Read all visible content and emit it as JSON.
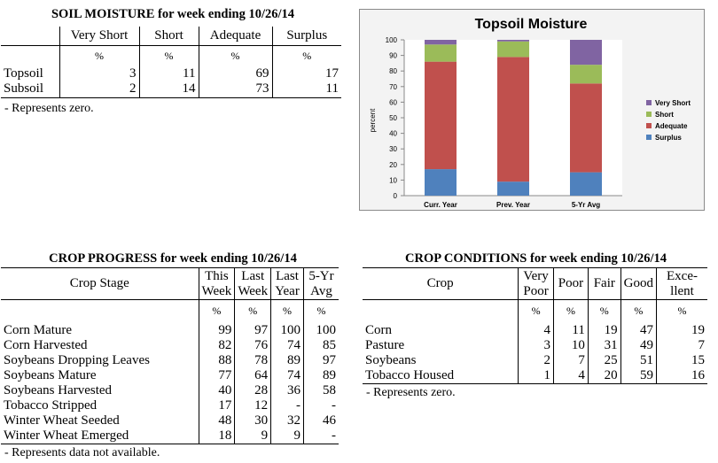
{
  "soil": {
    "title": "SOIL MOISTURE for week ending 10/26/14",
    "headers": [
      "Very Short",
      "Short",
      "Adequate",
      "Surplus"
    ],
    "units": [
      "%",
      "%",
      "%",
      "%"
    ],
    "rows": [
      {
        "label": "Topsoil",
        "values": [
          "3",
          "11",
          "69",
          "17"
        ]
      },
      {
        "label": "Subsoil",
        "values": [
          "2",
          "14",
          "73",
          "11"
        ]
      }
    ],
    "note": "- Represents zero."
  },
  "progress": {
    "title": "CROP PROGRESS for week ending 10/26/14",
    "stage_header": "Crop Stage",
    "headers": [
      [
        "This",
        "Week"
      ],
      [
        "Last",
        "Week"
      ],
      [
        "Last",
        "Year"
      ],
      [
        "5-Yr",
        "Avg"
      ]
    ],
    "units": [
      "%",
      "%",
      "%",
      "%"
    ],
    "rows": [
      {
        "label": "Corn Mature",
        "values": [
          "99",
          "97",
          "100",
          "100"
        ]
      },
      {
        "label": "Corn Harvested",
        "values": [
          "82",
          "76",
          "74",
          "85"
        ]
      },
      {
        "label": "Soybeans Dropping Leaves",
        "values": [
          "88",
          "78",
          "89",
          "97"
        ]
      },
      {
        "label": "Soybeans Mature",
        "values": [
          "77",
          "64",
          "74",
          "89"
        ]
      },
      {
        "label": "Soybeans Harvested",
        "values": [
          "40",
          "28",
          "36",
          "58"
        ]
      },
      {
        "label": "Tobacco Stripped",
        "values": [
          "17",
          "12",
          "-",
          "-"
        ]
      },
      {
        "label": "Winter Wheat Seeded",
        "values": [
          "48",
          "30",
          "32",
          "46"
        ]
      },
      {
        "label": "Winter Wheat Emerged",
        "values": [
          "18",
          "9",
          "9",
          "-"
        ]
      }
    ],
    "note": "- Represents data not available."
  },
  "conditions": {
    "title": "CROP CONDITIONS for week ending 10/26/14",
    "crop_header": "Crop",
    "headers": [
      [
        "Very",
        "Poor"
      ],
      [
        "Poor"
      ],
      [
        "Fair"
      ],
      [
        "Good"
      ],
      [
        "Exce-",
        "llent"
      ]
    ],
    "units": [
      "%",
      "%",
      "%",
      "%",
      "%"
    ],
    "rows": [
      {
        "label": "Corn",
        "values": [
          "4",
          "11",
          "19",
          "47",
          "19"
        ]
      },
      {
        "label": "Pasture",
        "values": [
          "3",
          "10",
          "31",
          "49",
          "7"
        ]
      },
      {
        "label": "Soybeans",
        "values": [
          "2",
          "7",
          "25",
          "51",
          "15"
        ]
      },
      {
        "label": "Tobacco Housed",
        "values": [
          "1",
          "4",
          "20",
          "59",
          "16"
        ]
      }
    ],
    "note": "- Represents zero."
  },
  "chart_data": {
    "type": "bar",
    "stacked": true,
    "title": "Topsoil Moisture",
    "ylabel": "percent",
    "xlabel": "",
    "ylim": [
      0,
      100
    ],
    "yticks": [
      0,
      10,
      20,
      30,
      40,
      50,
      60,
      70,
      80,
      90,
      100
    ],
    "categories": [
      "Curr. Year",
      "Prev. Year",
      "5-Yr Avg"
    ],
    "series": [
      {
        "name": "Surplus",
        "color": "#4f81bd",
        "values": [
          17,
          9,
          15
        ]
      },
      {
        "name": "Adequate",
        "color": "#c0504d",
        "values": [
          69,
          80,
          57
        ]
      },
      {
        "name": "Short",
        "color": "#9bbb59",
        "values": [
          11,
          10,
          12
        ]
      },
      {
        "name": "Very Short",
        "color": "#8064a2",
        "values": [
          3,
          1,
          16
        ]
      }
    ],
    "legend_order": [
      "Very Short",
      "Short",
      "Adequate",
      "Surplus"
    ],
    "legend_position": "right",
    "grid": false
  }
}
